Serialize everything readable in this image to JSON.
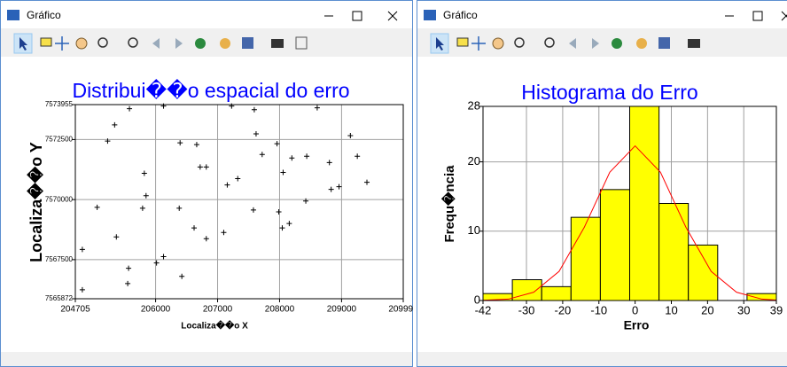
{
  "windows": [
    {
      "title": "Gráfico"
    },
    {
      "title": "Gráfico"
    }
  ],
  "chart_data": [
    {
      "type": "scatter",
      "title": "Distribui��o espacial do erro",
      "x_label": "Localiza��o X",
      "y_label": "Localiza��o Y",
      "color": "#000000",
      "x": [
        205578,
        205339,
        205226,
        204818,
        204818,
        205057,
        205367,
        205564,
        205550,
        205790,
        205846,
        206015,
        206128,
        205818,
        206128,
        206395,
        206663,
        206719,
        206818,
        206423,
        206381,
        206621,
        206818,
        207099,
        207156,
        207325,
        207226,
        207592,
        207621,
        207578,
        207719,
        207959,
        207987,
        208043,
        208057,
        208198,
        208156,
        208438,
        208423,
        208607,
        208804,
        208832,
        208959,
        209142,
        209254,
        209409
      ],
      "y": [
        7573782,
        7573110,
        7572439,
        7567924,
        7566245,
        7569678,
        7568446,
        7567141,
        7566506,
        7569640,
        7570163,
        7567364,
        7567626,
        7571095,
        7573894,
        7572364,
        7572289,
        7571357,
        7571357,
        7566805,
        7569640,
        7568819,
        7568372,
        7568633,
        7570610,
        7570872,
        7573894,
        7573744,
        7572737,
        7569566,
        7571879,
        7572327,
        7569491,
        7568819,
        7571133,
        7571730,
        7569006,
        7571804,
        7569939,
        7573819,
        7571543,
        7570424,
        7570536,
        7572662,
        7571804,
        7570722
      ],
      "xlim": [
        204705,
        209995
      ],
      "xticks": [
        204705,
        206000,
        207000,
        208000,
        209000,
        209995
      ],
      "ylim": [
        7565872,
        7573955
      ],
      "yticks": [
        7565872,
        7567500,
        7570000,
        7572500,
        7573955
      ],
      "grid": true
    },
    {
      "type": "histogram",
      "title": "Histograma do Erro",
      "x_label": "Erro",
      "y_label": "Frequ�ncia",
      "color": "#ffff00",
      "bins": [
        -42,
        -33.9,
        -25.8,
        -17.7,
        -9.6,
        -1.5,
        6.6,
        14.7,
        22.8,
        30.9,
        39
      ],
      "counts": [
        1,
        3,
        2,
        12,
        16,
        28,
        14,
        8,
        0,
        1
      ],
      "curve": {
        "color": "#ff0000",
        "x": [
          -42,
          -35,
          -28,
          -21,
          -14,
          -7,
          0,
          7,
          14,
          21,
          28,
          35,
          39
        ],
        "values": [
          0.03,
          0.2,
          1.2,
          4.2,
          10.6,
          18.5,
          22.3,
          18.5,
          10.6,
          4.2,
          1.2,
          0.2,
          0.07
        ]
      },
      "xlim": [
        -42,
        39
      ],
      "xticks": [
        -42,
        -30,
        -20,
        -10,
        0,
        10,
        20,
        30,
        39
      ],
      "ylim": [
        0,
        28
      ],
      "yticks": [
        0,
        10,
        20,
        28
      ],
      "grid": true
    }
  ]
}
